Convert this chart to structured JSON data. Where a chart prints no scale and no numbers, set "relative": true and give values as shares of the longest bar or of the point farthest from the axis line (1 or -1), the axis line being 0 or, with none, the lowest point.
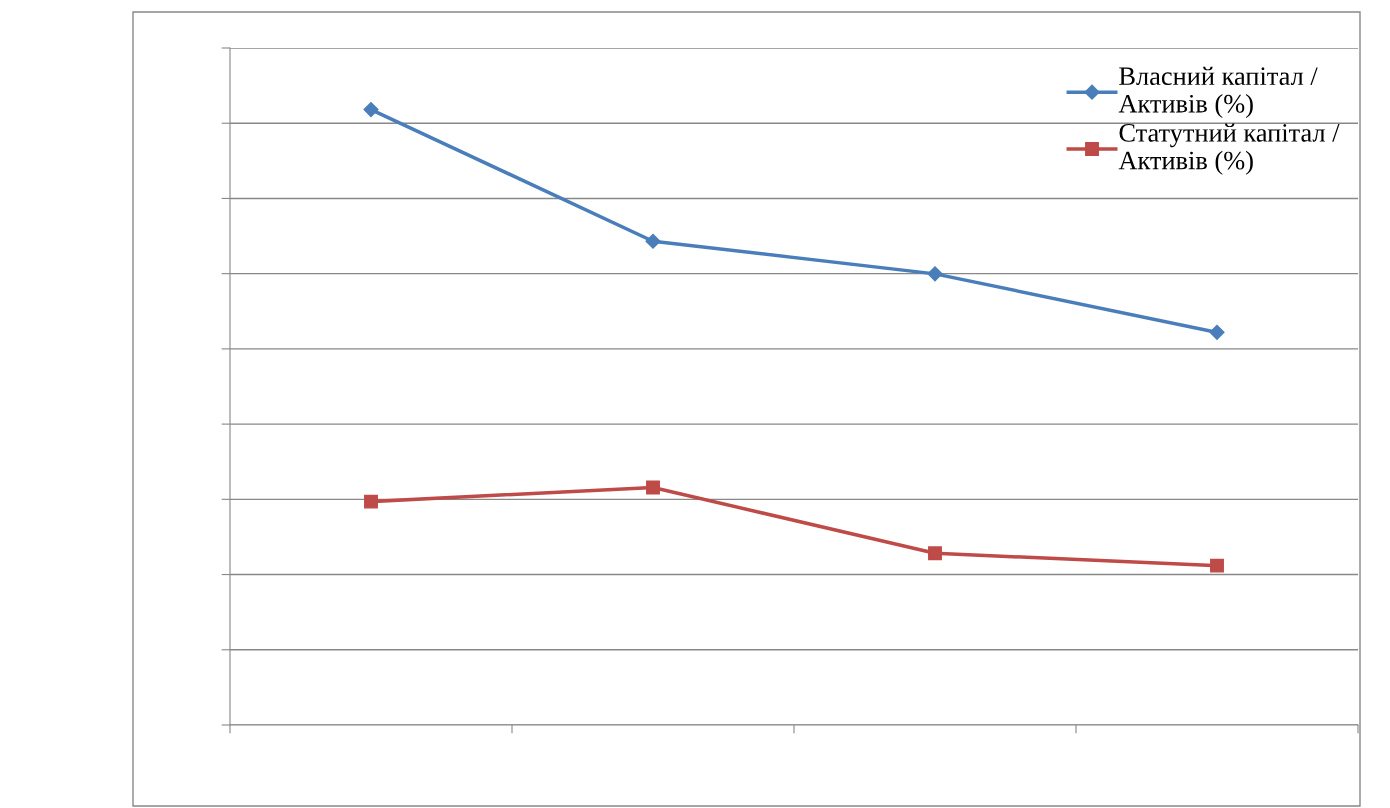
{
  "chart_data": {
    "type": "line",
    "relative": true,
    "categories": [
      null,
      null,
      null,
      null
    ],
    "series": [
      {
        "name": "Власний капітал / Активів (%)",
        "color": "#4a7ebb",
        "values": [
          1,
          0.786,
          0.733,
          0.638
        ],
        "marker": "diamond"
      },
      {
        "name": "Статутний капітал / Активів (%)",
        "color": "#be4b48",
        "values": [
          0.363,
          0.386,
          0.279,
          0.259
        ],
        "marker": "square"
      }
    ],
    "grid": "y",
    "legend": "top right",
    "line_style": "solid"
  }
}
